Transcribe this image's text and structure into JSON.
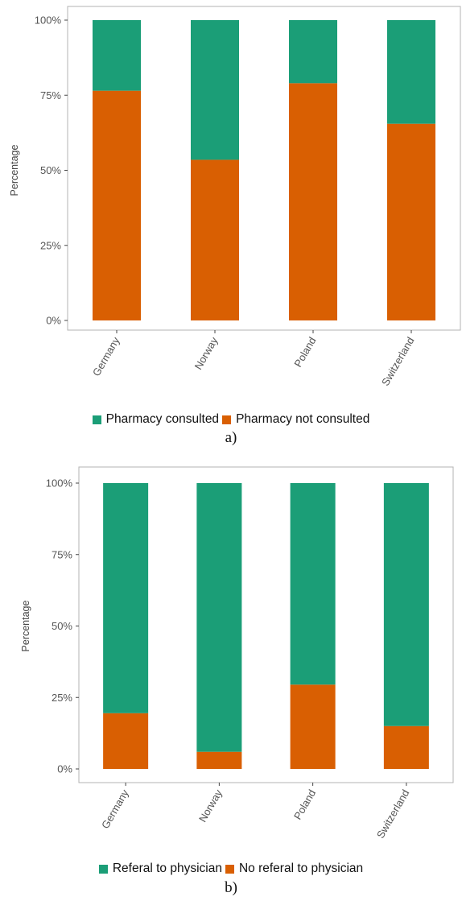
{
  "chart_data": [
    {
      "type": "bar",
      "stacked": true,
      "categories": [
        "Germany",
        "Norway",
        "Poland",
        "Switzerland"
      ],
      "series": [
        {
          "name": "Pharmacy consulted",
          "color": "#1b9e77",
          "values": [
            23.5,
            46.5,
            21,
            34.5
          ]
        },
        {
          "name": "Pharmacy not consulted",
          "color": "#d95f02",
          "values": [
            76.5,
            53.5,
            79,
            65.5
          ]
        }
      ],
      "yticks": [
        "0%",
        "25%",
        "50%",
        "75%",
        "100%"
      ],
      "ylim": [
        0,
        100
      ],
      "ylabel": "Percentage",
      "xlabel": "",
      "legend_position": "bottom",
      "caption": "a)"
    },
    {
      "type": "bar",
      "stacked": true,
      "categories": [
        "Germany",
        "Norway",
        "Poland",
        "Switzerland"
      ],
      "series": [
        {
          "name": "Referal to physician",
          "color": "#1b9e77",
          "values": [
            80.5,
            94,
            70.5,
            85
          ]
        },
        {
          "name": "No referal to physician",
          "color": "#d95f02",
          "values": [
            19.5,
            6,
            29.5,
            15
          ]
        }
      ],
      "yticks": [
        "0%",
        "25%",
        "50%",
        "75%",
        "100%"
      ],
      "ylim": [
        0,
        100
      ],
      "ylabel": "Percentage",
      "xlabel": "",
      "legend_position": "bottom",
      "caption": "b)"
    }
  ]
}
